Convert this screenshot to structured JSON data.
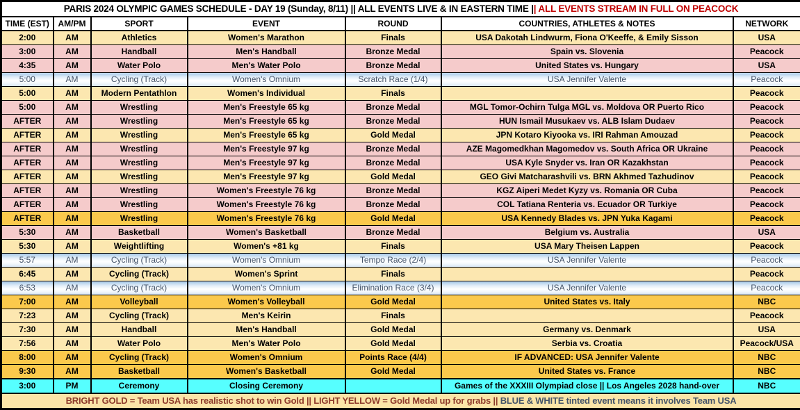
{
  "title": {
    "black": "PARIS 2024 OLYMPIC GAMES SCHEDULE - DAY 19 (Sunday, 8/11) || ALL EVENTS LIVE & IN EASTERN TIME |",
    "red": "| ALL EVENTS STREAM IN FULL ON PEACOCK"
  },
  "columns": [
    "TIME (EST)",
    "AM/PM",
    "SPORT",
    "EVENT",
    "ROUND",
    "COUNTRIES, ATHLETES & NOTES",
    "NETWORK"
  ],
  "rows": [
    {
      "time": "2:00",
      "ampm": "AM",
      "sport": "Athletics",
      "event": "Women's Marathon",
      "round": "Finals",
      "notes": "USA Dakotah Lindwurm, Fiona O'Keeffe, & Emily Sisson",
      "network": "USA",
      "style": "yellow"
    },
    {
      "time": "3:00",
      "ampm": "AM",
      "sport": "Handball",
      "event": "Men's Handball",
      "round": "Bronze Medal",
      "notes": "Spain vs. Slovenia",
      "network": "Peacock",
      "style": "pink"
    },
    {
      "time": "4:35",
      "ampm": "AM",
      "sport": "Water Polo",
      "event": "Men's Water Polo",
      "round": "Bronze Medal",
      "notes": "United States vs. Hungary",
      "network": "USA",
      "style": "pink"
    },
    {
      "time": "5:00",
      "ampm": "AM",
      "sport": "Cycling (Track)",
      "event": "Women's Omnium",
      "round": "Scratch Race (1/4)",
      "notes": "USA Jennifer Valente",
      "network": "Peacock",
      "style": "blue"
    },
    {
      "time": "5:00",
      "ampm": "AM",
      "sport": "Modern Pentathlon",
      "event": "Women's Individual",
      "round": "Finals",
      "notes": "",
      "network": "Peacock",
      "style": "yellow"
    },
    {
      "time": "5:00",
      "ampm": "AM",
      "sport": "Wrestling",
      "event": "Men's Freestyle 65 kg",
      "round": "Bronze Medal",
      "notes": "MGL Tomor-Ochirn Tulga MGL vs. Moldova OR Puerto Rico",
      "network": "Peacock",
      "style": "pink"
    },
    {
      "time": "AFTER",
      "ampm": "AM",
      "sport": "Wrestling",
      "event": "Men's Freestyle 65 kg",
      "round": "Bronze Medal",
      "notes": "HUN Ismail Musukaev vs. ALB Islam Dudaev",
      "network": "Peacock",
      "style": "pink"
    },
    {
      "time": "AFTER",
      "ampm": "AM",
      "sport": "Wrestling",
      "event": "Men's Freestyle 65 kg",
      "round": "Gold Medal",
      "notes": "JPN Kotaro Kiyooka vs. IRI Rahman Amouzad",
      "network": "Peacock",
      "style": "yellow"
    },
    {
      "time": "AFTER",
      "ampm": "AM",
      "sport": "Wrestling",
      "event": "Men's Freestyle 97 kg",
      "round": "Bronze Medal",
      "notes": "AZE Magomedkhan Magomedov vs. South Africa OR Ukraine",
      "network": "Peacock",
      "style": "pink"
    },
    {
      "time": "AFTER",
      "ampm": "AM",
      "sport": "Wrestling",
      "event": "Men's Freestyle 97 kg",
      "round": "Bronze Medal",
      "notes": "USA Kyle Snyder vs. Iran OR Kazakhstan",
      "network": "Peacock",
      "style": "pink"
    },
    {
      "time": "AFTER",
      "ampm": "AM",
      "sport": "Wrestling",
      "event": "Men's Freestyle 97 kg",
      "round": "Gold Medal",
      "notes": "GEO Givi Matcharashvili vs. BRN Akhmed Tazhudinov",
      "network": "Peacock",
      "style": "yellow"
    },
    {
      "time": "AFTER",
      "ampm": "AM",
      "sport": "Wrestling",
      "event": "Women's Freestyle 76 kg",
      "round": "Bronze Medal",
      "notes": "KGZ Aiperi Medet Kyzy vs. Romania OR Cuba",
      "network": "Peacock",
      "style": "pink"
    },
    {
      "time": "AFTER",
      "ampm": "AM",
      "sport": "Wrestling",
      "event": "Women's Freestyle 76 kg",
      "round": "Bronze Medal",
      "notes": "COL Tatiana Renteria vs. Ecuador OR Turkiye",
      "network": "Peacock",
      "style": "pink"
    },
    {
      "time": "AFTER",
      "ampm": "AM",
      "sport": "Wrestling",
      "event": "Women's Freestyle 76 kg",
      "round": "Gold Medal",
      "notes": "USA Kennedy Blades vs. JPN Yuka Kagami",
      "network": "Peacock",
      "style": "gold"
    },
    {
      "time": "5:30",
      "ampm": "AM",
      "sport": "Basketball",
      "event": "Women's Basketball",
      "round": "Bronze Medal",
      "notes": "Belgium vs. Australia",
      "network": "USA",
      "style": "pink"
    },
    {
      "time": "5:30",
      "ampm": "AM",
      "sport": "Weightlifting",
      "event": "Women's +81 kg",
      "round": "Finals",
      "notes": "USA Mary Theisen Lappen",
      "network": "Peacock",
      "style": "yellow"
    },
    {
      "time": "5:57",
      "ampm": "AM",
      "sport": "Cycling (Track)",
      "event": "Women's Omnium",
      "round": "Tempo Race (2/4)",
      "notes": "USA Jennifer Valente",
      "network": "Peacock",
      "style": "blue"
    },
    {
      "time": "6:45",
      "ampm": "AM",
      "sport": "Cycling (Track)",
      "event": "Women's Sprint",
      "round": "Finals",
      "notes": "",
      "network": "Peacock",
      "style": "yellow"
    },
    {
      "time": "6:53",
      "ampm": "AM",
      "sport": "Cycling (Track)",
      "event": "Women's Omnium",
      "round": "Elimination Race (3/4)",
      "notes": "USA Jennifer Valente",
      "network": "Peacock",
      "style": "blue"
    },
    {
      "time": "7:00",
      "ampm": "AM",
      "sport": "Volleyball",
      "event": "Women's Volleyball",
      "round": "Gold Medal",
      "notes": "United States vs. Italy",
      "network": "NBC",
      "style": "gold"
    },
    {
      "time": "7:23",
      "ampm": "AM",
      "sport": "Cycling (Track)",
      "event": "Men's Keirin",
      "round": "Finals",
      "notes": "",
      "network": "Peacock",
      "style": "yellow"
    },
    {
      "time": "7:30",
      "ampm": "AM",
      "sport": "Handball",
      "event": "Men's Handball",
      "round": "Gold Medal",
      "notes": "Germany vs. Denmark",
      "network": "USA",
      "style": "yellow"
    },
    {
      "time": "7:56",
      "ampm": "AM",
      "sport": "Water Polo",
      "event": "Men's Water Polo",
      "round": "Gold Medal",
      "notes": "Serbia vs. Croatia",
      "network": "Peacock/USA",
      "style": "yellow"
    },
    {
      "time": "8:00",
      "ampm": "AM",
      "sport": "Cycling (Track)",
      "event": "Women's Omnium",
      "round": "Points Race (4/4)",
      "notes": "IF ADVANCED: USA Jennifer Valente",
      "network": "NBC",
      "style": "gold"
    },
    {
      "time": "9:30",
      "ampm": "AM",
      "sport": "Basketball",
      "event": "Women's Basketball",
      "round": "Gold Medal",
      "notes": "United States vs. France",
      "network": "NBC",
      "style": "gold"
    },
    {
      "time": "3:00",
      "ampm": "PM",
      "sport": "Ceremony",
      "event": "Closing Ceremony",
      "round": "",
      "notes": "Games of the XXXIII Olympiad close || Los Angeles 2028 hand-over",
      "network": "NBC",
      "style": "cyan"
    }
  ],
  "legend": {
    "seg1": "BRIGHT GOLD = Team USA has realistic shot to win Gold",
    "sep1": "||",
    "seg2": "LIGHT YELLOW = Gold Medal up for grabs",
    "sep2": "||",
    "seg3": "BLUE & WHITE tinted event means it involves Team USA"
  },
  "colors": {
    "title_red": "#C00000",
    "bright_gold": "#FBC94C",
    "light_yellow": "#FCE7B0",
    "pink": "#F5CBCB",
    "blue_tint": "#A9CBE9",
    "cyan": "#56FFFF",
    "legend_maroon": "#8E3B2C",
    "legend_slate": "#44546A",
    "border": "#000000"
  }
}
